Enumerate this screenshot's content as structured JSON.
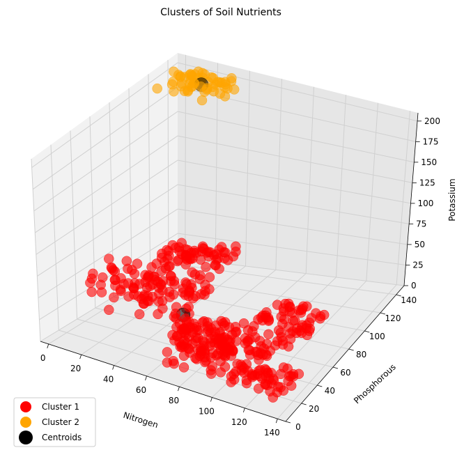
{
  "chart_data": {
    "type": "scatter3d",
    "title": "Clusters of Soil Nutrients",
    "xlabel": "Nitrogen",
    "ylabel": "Phosphorous",
    "zlabel": "Potassium",
    "xlim": [
      -5,
      145
    ],
    "ylim": [
      0,
      150
    ],
    "zlim": [
      0,
      210
    ],
    "x_ticks": [
      0,
      20,
      40,
      60,
      80,
      100,
      120,
      140
    ],
    "y_ticks": [
      0,
      20,
      40,
      60,
      80,
      100,
      120,
      140
    ],
    "z_ticks": [
      0,
      25,
      50,
      75,
      100,
      125,
      150,
      175,
      200
    ],
    "grid": true,
    "legend_position": "lower-left",
    "series": [
      {
        "name": "Cluster 1",
        "color": "#ff0000",
        "blobs": [
          {
            "x": [
              0,
              40
            ],
            "y": [
              35,
              80
            ],
            "z": [
              15,
              60
            ]
          },
          {
            "x": [
              20,
              60
            ],
            "y": [
              50,
              80
            ],
            "z": [
              20,
              60
            ]
          },
          {
            "x": [
              0,
              40
            ],
            "y": [
              120,
              145
            ],
            "z": [
              15,
              25
            ]
          },
          {
            "x": [
              60,
              120
            ],
            "y": [
              35,
              60
            ],
            "z": [
              15,
              25
            ]
          },
          {
            "x": [
              70,
              105
            ],
            "y": [
              5,
              30
            ],
            "z": [
              15,
              45
            ]
          },
          {
            "x": [
              105,
              140
            ],
            "y": [
              5,
              30
            ],
            "z": [
              15,
              25
            ]
          },
          {
            "x": [
              90,
              125
            ],
            "y": [
              60,
              95
            ],
            "z": [
              15,
              25
            ]
          },
          {
            "x": [
              60,
              100
            ],
            "y": [
              25,
              35
            ],
            "z": [
              15,
              45
            ]
          }
        ]
      },
      {
        "name": "Cluster 2",
        "color": "#ffa500",
        "blobs": [
          {
            "x": [
              0,
              40
            ],
            "y": [
              120,
              145
            ],
            "z": [
              195,
              205
            ]
          }
        ]
      },
      {
        "name": "Centroids",
        "color": "#000000",
        "points": [
          {
            "x": 55,
            "y": 52,
            "z": 25
          },
          {
            "x": 20,
            "y": 133,
            "z": 200
          }
        ]
      }
    ]
  }
}
